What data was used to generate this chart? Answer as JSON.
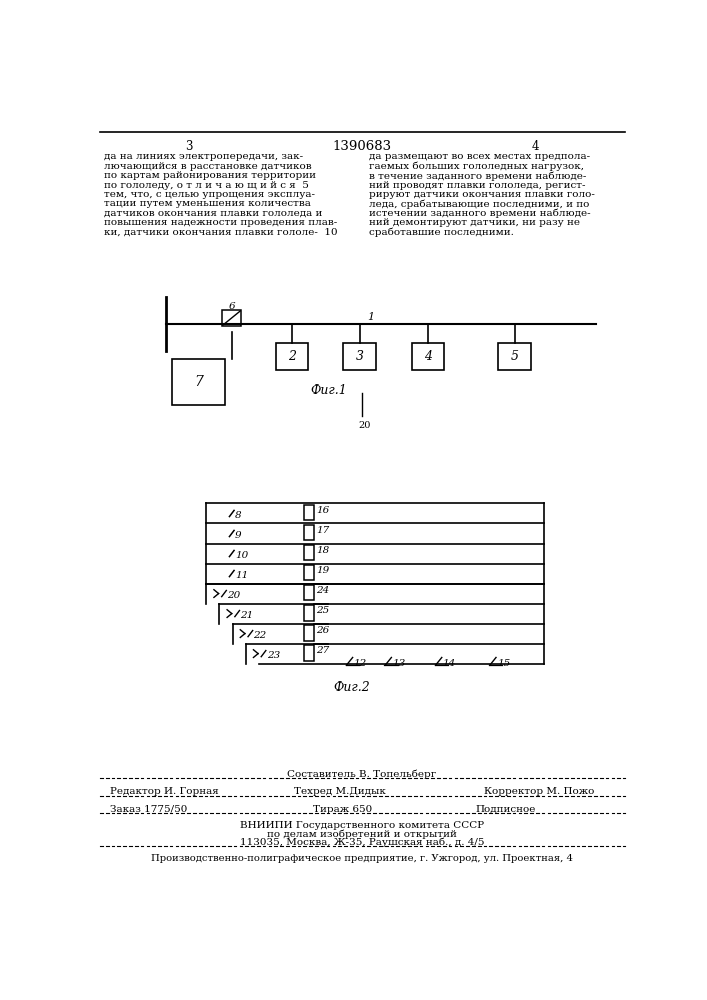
{
  "title": "1390683",
  "page_left": "3",
  "page_right": "4",
  "bg_color": "#ffffff",
  "left_column_text": [
    "да на линиях электропередачи, зак-",
    "лючающийся в расстановке датчиков",
    "по картам районирования территории",
    "по гололеду, о т л и ч а ю щ и й с я  5",
    "тем, что, с целью упрощения эксплуа-",
    "тации путем уменьшения количества",
    "датчиков окончания плавки гололеда и",
    "повышения надежности проведения плав-",
    "ки, датчики окончания плавки гололе-  10"
  ],
  "right_column_text": [
    "да размещают во всех местах предпола-",
    "гаемых больших гололедных нагрузок,",
    "в течение заданного времени наблюде-",
    "ний проводят плавки гололеда, регист-",
    "рируют датчики окончания плавки голо-",
    "леда, срабатывающие последними, и по",
    "истечении заданного времени наблюде-",
    "ний демонтируют датчики, ни разу не",
    "сработавшие последними."
  ],
  "fig1_caption": "Фиг.1",
  "fig2_caption": "Фиг.2",
  "fig2_page_note": "20",
  "footer_sestavitel": "Составитель В. Топельберг",
  "footer_editor": "Редактор И. Горная",
  "footer_techred": "Техред М.Дидык",
  "footer_corrector": "Корректор М. Пожо",
  "footer_order": "Заказ 1775/50",
  "footer_tirazh": "Тираж 650",
  "footer_podpisnoe": "Подписное",
  "footer_vniipи1": "ВНИИПИ Государственного комитета СССР",
  "footer_vniipи2": "по делам изобретений и открытий",
  "footer_vniipи3": "113035, Москва, Ж-35, Раушская наб., д. 4/5",
  "footer_prod": "Производственно-полиграфическое предприятие, г. Ужгород, ул. Проектная, 4"
}
